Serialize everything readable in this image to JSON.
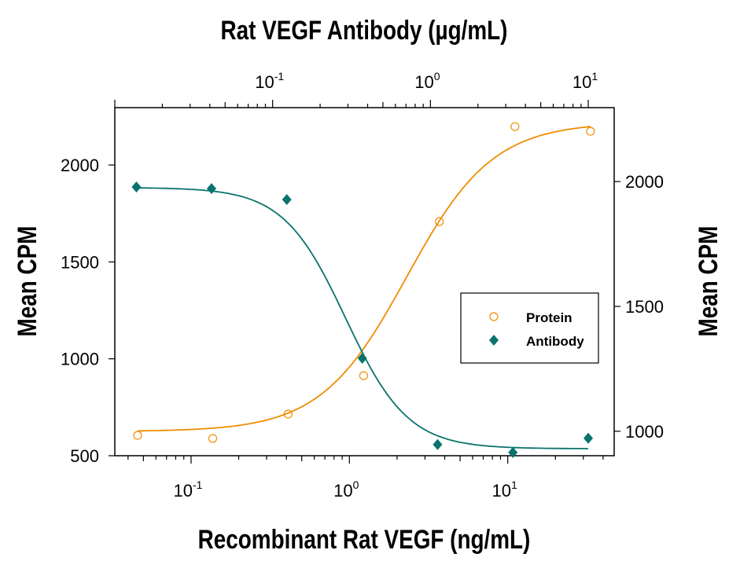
{
  "chart_data": {
    "type": "scatter",
    "title": "",
    "top_xlabel": "Rat VEGF Antibody (µg/mL)",
    "xlabel": "Recombinant Rat VEGF (ng/mL)",
    "ylabel": "Mean CPM",
    "y2label": "Mean CPM",
    "x_scale": "log",
    "x_top_scale": "log",
    "xlim": [
      0.033,
      47
    ],
    "x_top_lim": [
      0.01,
      14.6
    ],
    "ylim": [
      500,
      2296
    ],
    "y2lim": [
      902,
      2296
    ],
    "x_ticks": [
      {
        "base": "10",
        "exp": "-1",
        "value": 0.1
      },
      {
        "base": "10",
        "exp": "0",
        "value": 1
      },
      {
        "base": "10",
        "exp": "1",
        "value": 10
      }
    ],
    "x_top_ticks": [
      {
        "base": "10",
        "exp": "-1",
        "value": 0.1
      },
      {
        "base": "10",
        "exp": "0",
        "value": 1
      },
      {
        "base": "10",
        "exp": "1",
        "value": 10
      }
    ],
    "y_ticks": [
      "500",
      "1000",
      "1500",
      "2000"
    ],
    "y2_ticks": [
      "1000",
      "1500",
      "2000"
    ],
    "grid": false,
    "legend_position": "center-right",
    "series": [
      {
        "name": "Protein",
        "marker": "open-circle",
        "color": "#f08c00",
        "axes": "bottom-left",
        "x": [
          0.046,
          0.137,
          0.41,
          1.23,
          3.7,
          11.1,
          33.3
        ],
        "y": [
          605,
          589,
          715,
          913,
          1708,
          2198,
          2174
        ],
        "fit": {
          "bottom": 625,
          "top": 2220,
          "ec50": 2.3,
          "hill": 1.6
        }
      },
      {
        "name": "Antibody",
        "marker": "filled-diamond",
        "color": "#0a736e",
        "axes": "top-right",
        "x": [
          0.0137,
          0.041,
          0.123,
          0.37,
          1.11,
          3.33,
          10
        ],
        "y": [
          1978,
          1972,
          1928,
          1292,
          947,
          915,
          972
        ],
        "fit": {
          "bottom": 930,
          "top": 1976,
          "ec50": 0.29,
          "hill": 2.2
        }
      }
    ]
  }
}
